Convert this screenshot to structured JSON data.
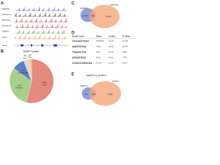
{
  "panels": {
    "a": {
      "letter": "A",
      "tracks": [
        {
          "name": "DNMT3",
          "color": "#3050b8"
        },
        {
          "name": "H3K4me1",
          "color": "#222222"
        },
        {
          "name": "H3K27ac",
          "color": "#c81e1e"
        },
        {
          "name": "H3K4me3",
          "color": "#c81e1e"
        },
        {
          "name": "UHRF1",
          "color": "#2a9d2a"
        },
        {
          "name": "Input",
          "color": "#e08a10"
        }
      ],
      "gene": "Gene"
    },
    "b": {
      "letter": "B",
      "title": "DNMT3 peaks",
      "pie": {
        "type": "pie",
        "labels": [
          "Intron",
          "Intergenic",
          "Promoter-TSS",
          "Exon",
          "Other"
        ],
        "values": [
          54,
          31,
          9,
          4,
          2
        ],
        "value_labels": [
          "54%",
          "31%",
          "9%",
          "4%",
          "2%"
        ],
        "colors": [
          "#e58a7e",
          "#a8d08d",
          "#5b7fc7",
          "#d9d9d9",
          "#f2c57c"
        ]
      }
    },
    "c": {
      "letter": "C",
      "left": "DNMT3",
      "right": "H3K27ac",
      "counts": [
        "1,846",
        "393",
        "6,012"
      ]
    },
    "d": {
      "letter": "D",
      "header": [
        "Known motif",
        "Name",
        "p-value",
        "% Target"
      ],
      "rows": [
        {
          "motif": "CTCAATTGCC",
          "color": "#d9a400",
          "cells": [
            "HOXB13",
            "1e-25",
            "12.4%"
          ]
        },
        {
          "motif": "AGGTGTGA",
          "color": "#2a9d2a",
          "cells": [
            "Tbx5",
            "1e-18",
            "20.1%"
          ]
        },
        {
          "motif": "TGACGTCA",
          "color": "#2a9d2a",
          "cells": [
            "Atf1",
            "1e-15",
            "9.8%"
          ]
        },
        {
          "motif": "ATGATGCA",
          "color": "#c8a000",
          "cells": [
            "Oct4",
            "1e-12",
            "7.5%"
          ]
        },
        {
          "motif": "CCGCCTGGCGA",
          "color": "#b07000",
          "cells": [
            "CTCF",
            "1e-10",
            "5.2%"
          ]
        }
      ]
    },
    "e": {
      "letter": "E",
      "title": "DNMT3 vs UHRF1",
      "left": "DNMT3",
      "right": "UHRF1",
      "counts": [
        "412",
        "1,827",
        "7,480"
      ]
    }
  }
}
